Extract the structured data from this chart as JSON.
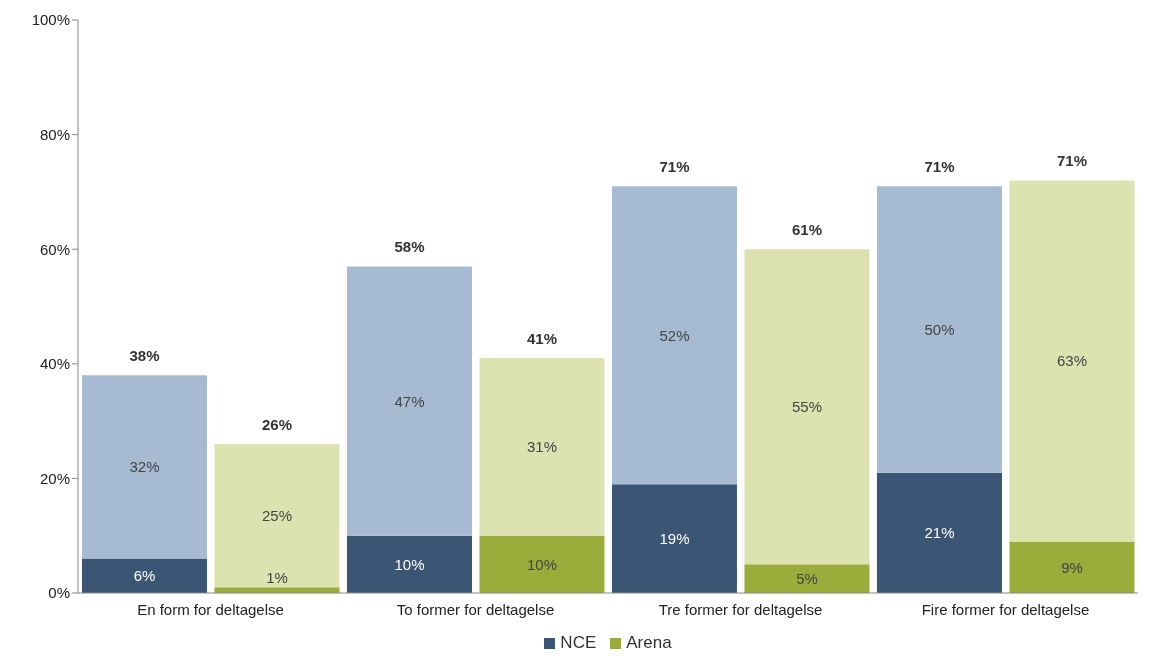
{
  "chart_data": {
    "type": "bar",
    "stacked": true,
    "categories": [
      "En form for deltagelse",
      null,
      "To former for deltagelse",
      null,
      "Tre former for deltagelse",
      null,
      "Fire former for deltagelse",
      null
    ],
    "series": [
      {
        "name": "NCE",
        "color": "#3a5674",
        "values": [
          6,
          null,
          10,
          null,
          19,
          null,
          21,
          null
        ],
        "value_labels": [
          "6%",
          null,
          "10%",
          null,
          "19%",
          null,
          "21%",
          null
        ]
      },
      {
        "color": "#a6bbd2",
        "values": [
          32,
          null,
          47,
          null,
          52,
          null,
          50,
          null
        ],
        "value_labels": [
          "32%",
          null,
          "47%",
          null,
          "52%",
          null,
          "50%",
          null
        ]
      },
      {
        "name": "Arena",
        "color": "#9aac3a",
        "values": [
          null,
          1,
          null,
          10,
          null,
          5,
          null,
          9
        ],
        "value_labels": [
          null,
          "1%",
          null,
          "10%",
          null,
          "5%",
          null,
          "9%"
        ]
      },
      {
        "color": "#dde3b0",
        "values": [
          null,
          25,
          null,
          31,
          null,
          55,
          null,
          63
        ],
        "value_labels": [
          null,
          "25%",
          null,
          "31%",
          null,
          "55%",
          null,
          "63%"
        ]
      }
    ],
    "totals": [
      "38%",
      "26%",
      "58%",
      "41%",
      "71%",
      "61%",
      "71%",
      "71%"
    ],
    "ylim": [
      0,
      100
    ],
    "yticks": [
      {
        "value": 0,
        "label": "0%"
      },
      {
        "value": 20,
        "label": "20%"
      },
      {
        "value": 40,
        "label": "40%"
      },
      {
        "value": 60,
        "label": "60%"
      },
      {
        "value": 80,
        "label": "80%"
      },
      {
        "value": 100,
        "label": "100%"
      }
    ],
    "grid": false,
    "legend": "bottom"
  }
}
